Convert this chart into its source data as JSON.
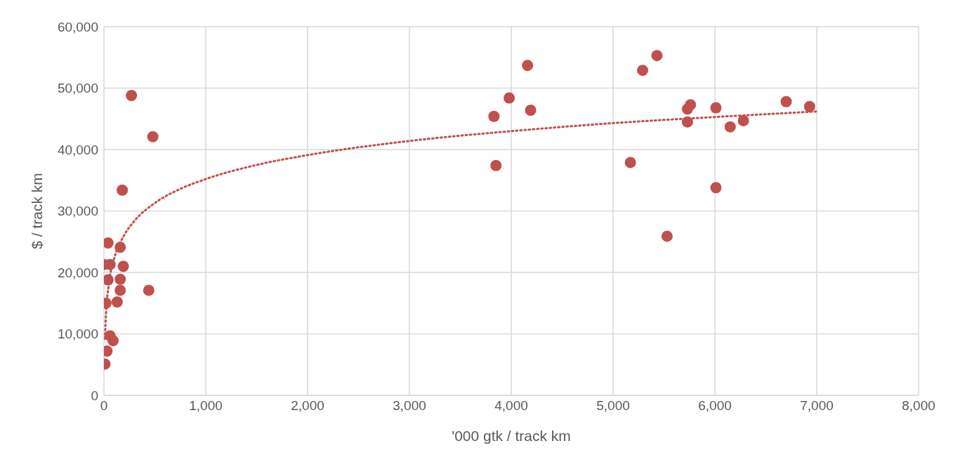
{
  "chart_data": {
    "type": "scatter",
    "xlabel": "'000 gtk / track km",
    "ylabel": "$ / track km",
    "xlim": [
      0,
      8000
    ],
    "xticks": [
      {
        "value": 0,
        "label": "0"
      },
      {
        "value": 1000,
        "label": "1,000"
      },
      {
        "value": 2000,
        "label": "2,000"
      },
      {
        "value": 3000,
        "label": "3,000"
      },
      {
        "value": 4000,
        "label": "4,000"
      },
      {
        "value": 5000,
        "label": "5,000"
      },
      {
        "value": 6000,
        "label": "6,000"
      },
      {
        "value": 7000,
        "label": "7,000"
      },
      {
        "value": 8000,
        "label": "8,000"
      }
    ],
    "ylim": [
      0,
      60000
    ],
    "yticks": [
      {
        "value": 0,
        "label": "0"
      },
      {
        "value": 10000,
        "label": "10,000"
      },
      {
        "value": 20000,
        "label": "20,000"
      },
      {
        "value": 30000,
        "label": "30,000"
      },
      {
        "value": 40000,
        "label": "40,000"
      },
      {
        "value": 50000,
        "label": "50,000"
      },
      {
        "value": 60000,
        "label": "60,000"
      }
    ],
    "grid": true,
    "marker": "circle",
    "series": [
      {
        "color": "#c0504d",
        "x": [
          10,
          30,
          60,
          90,
          20,
          130,
          40,
          160,
          160,
          0,
          60,
          190,
          40,
          160,
          180,
          270,
          480,
          440,
          3830,
          3850,
          3980,
          4160,
          4190,
          5170,
          5290,
          5430,
          5530,
          5730,
          5730,
          5760,
          6010,
          6010,
          6150,
          6280,
          6700,
          6930
        ],
        "values": [
          5100,
          7200,
          9700,
          8900,
          15000,
          15200,
          18800,
          18900,
          17100,
          21300,
          21300,
          21000,
          24800,
          24100,
          33400,
          48800,
          42100,
          17100,
          45400,
          37400,
          48400,
          53700,
          46400,
          37900,
          52900,
          55300,
          25900,
          44500,
          46600,
          47300,
          46800,
          33800,
          43700,
          44700,
          47800,
          47000
        ]
      },
      {
        "type": "line",
        "color": "#c0504d",
        "line_style": "dotted",
        "marker": "none",
        "x": [
          10,
          20,
          50,
          100,
          200,
          300,
          500,
          750,
          1000,
          1500,
          2000,
          3000,
          4000,
          5000,
          6000,
          7000
        ],
        "values": [
          9200,
          13100,
          18300,
          22200,
          26100,
          28400,
          31300,
          33600,
          35200,
          37500,
          39100,
          41400,
          43000,
          44300,
          45300,
          46200
        ]
      }
    ]
  }
}
